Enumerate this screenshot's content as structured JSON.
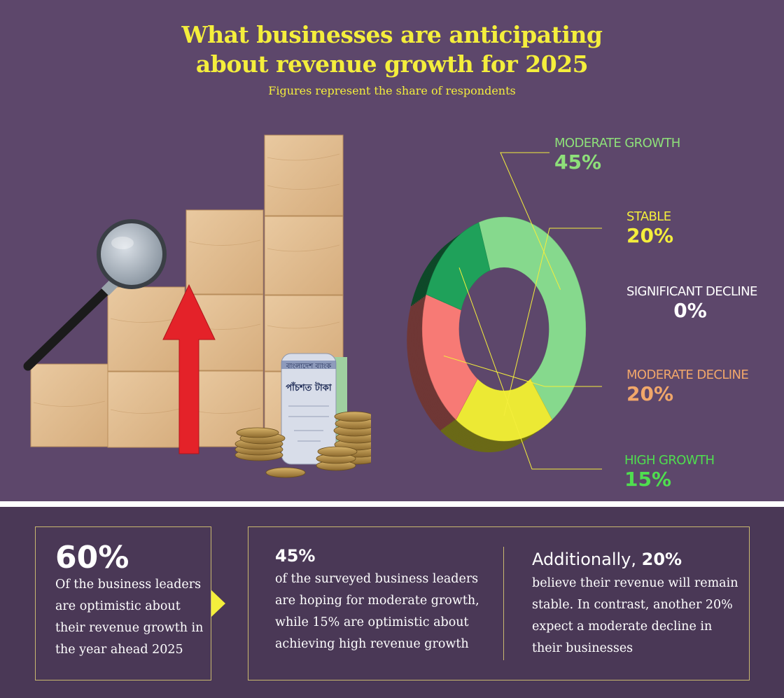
{
  "header": {
    "title_line1": "What  businesses are anticipating",
    "title_line2": "about revenue growth for 2025",
    "subtitle": "Figures represent the share of respondents"
  },
  "chart_data": {
    "type": "pie",
    "style": "3d-donut",
    "title": "What businesses are anticipating about revenue growth for 2025",
    "subtitle": "Figures represent the share of respondents",
    "slices": [
      {
        "label": "MODERATE GROWTH",
        "value": 45,
        "display": "45%",
        "color": "#86d98d"
      },
      {
        "label": "STABLE",
        "value": 20,
        "display": "20%",
        "color": "#ece934"
      },
      {
        "label": "SIGNIFICANT DECLINE",
        "value": 0,
        "display": "0%",
        "color": "#ffffff"
      },
      {
        "label": "MODERATE DECLINE",
        "value": 20,
        "display": "20%",
        "color": "#f77a75"
      },
      {
        "label": "HIGH GROWTH",
        "value": 15,
        "display": "15%",
        "color": "#1fa15a"
      }
    ]
  },
  "callouts": {
    "moderate_growth": {
      "label": "MODERATE GROWTH",
      "pct": "45%"
    },
    "stable": {
      "label": "STABLE",
      "pct": "20%"
    },
    "significant_decline": {
      "label": "SIGNIFICANT DECLINE",
      "pct": "0%"
    },
    "moderate_decline": {
      "label": "MODERATE DECLINE",
      "pct": "20%"
    },
    "high_growth": {
      "label": "HIGH GROWTH",
      "pct": "15%"
    }
  },
  "illustration": {
    "banknote_line1": "বাংলাদেশ ব্যাংক",
    "banknote_line2": "পাঁচশত টাকা"
  },
  "summary": {
    "box1": {
      "pct": "60%",
      "text": "Of the business leaders are optimistic about their revenue growth in the year ahead 2025"
    },
    "box2": {
      "pct": "45%",
      "text": "of the surveyed business leaders are hoping for moderate growth, while 15% are optimistic about achieving high revenue growth"
    },
    "box3": {
      "lead": "Additionally,",
      "pct": "20%",
      "text": "believe their revenue will remain stable. In contrast, another 20% expect a moderate decline in their businesses"
    }
  },
  "colors": {
    "background": "#5d476b",
    "bottom_background": "#4a3856",
    "title": "#f4ee3c",
    "border": "#c9b86f"
  }
}
